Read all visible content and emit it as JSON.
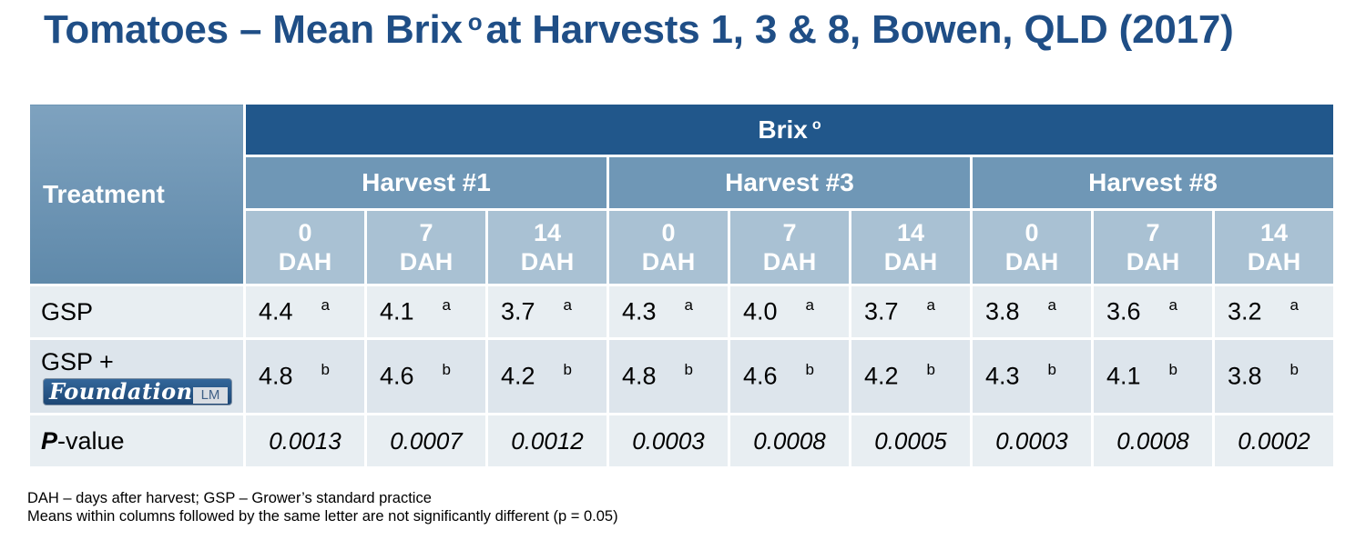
{
  "title": {
    "text": "Tomatoes – Mean Brix",
    "degree": "o",
    "rest": "at Harvests 1, 3 & 8, Bowen, QLD (2017)"
  },
  "table": {
    "treatment_header": "Treatment",
    "brix_header": "Brix",
    "brix_degree": "o",
    "harvests": [
      "Harvest #1",
      "Harvest #3",
      "Harvest #8"
    ],
    "dah_days": [
      "0",
      "7",
      "14",
      "0",
      "7",
      "14",
      "0",
      "7",
      "14"
    ],
    "dah_unit": "DAH",
    "rows": [
      {
        "label": "GSP",
        "values": [
          "4.4",
          "4.1",
          "3.7",
          "4.3",
          "4.0",
          "3.7",
          "3.8",
          "3.6",
          "3.2"
        ],
        "letters": [
          "a",
          "a",
          "a",
          "a",
          "a",
          "a",
          "a",
          "a",
          "a"
        ]
      },
      {
        "label": "GSP +",
        "logo_text": "Foundation",
        "logo_suffix": "LM",
        "values": [
          "4.8",
          "4.6",
          "4.2",
          "4.8",
          "4.6",
          "4.2",
          "4.3",
          "4.1",
          "3.8"
        ],
        "letters": [
          "b",
          "b",
          "b",
          "b",
          "b",
          "b",
          "b",
          "b",
          "b"
        ]
      }
    ],
    "p_row": {
      "label_bold": "P",
      "label_rest": "-value",
      "values": [
        "0.0013",
        "0.0007",
        "0.0012",
        "0.0003",
        "0.0008",
        "0.0005",
        "0.0003",
        "0.0008",
        "0.0002"
      ]
    }
  },
  "notes": [
    "DAH – days after harvest; GSP – Grower’s standard practice",
    "Means within columns followed by the same letter are not significantly different (p = 0.05)"
  ],
  "colors": {
    "title": "#1f4e86",
    "brix_header": "#21578b",
    "harvest_header": "#6f97b6",
    "dah_header": "#a9c1d3",
    "row_bg": "#e8eef2"
  }
}
